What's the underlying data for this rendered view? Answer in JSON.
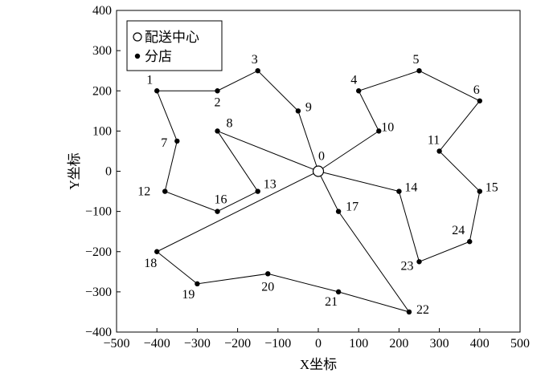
{
  "chart_data": {
    "type": "scatter",
    "xlabel": "X坐标",
    "ylabel": "Y坐标",
    "xlim": [
      -500,
      500
    ],
    "ylim": [
      -400,
      400
    ],
    "xticks": [
      -500,
      -400,
      -300,
      -200,
      -100,
      0,
      100,
      200,
      300,
      400,
      500
    ],
    "yticks": [
      -400,
      -300,
      -200,
      -100,
      0,
      100,
      200,
      300,
      400
    ],
    "grid": false,
    "legend_position": "top-left",
    "legend": [
      {
        "label": "配送中心",
        "marker": "open-circle"
      },
      {
        "label": "分店",
        "marker": "filled-dot"
      }
    ],
    "points": [
      {
        "id": "0",
        "x": 0,
        "y": 0,
        "kind": "depot"
      },
      {
        "id": "1",
        "x": -400,
        "y": 200
      },
      {
        "id": "2",
        "x": -250,
        "y": 200
      },
      {
        "id": "3",
        "x": -150,
        "y": 250
      },
      {
        "id": "4",
        "x": 100,
        "y": 200
      },
      {
        "id": "5",
        "x": 250,
        "y": 250
      },
      {
        "id": "6",
        "x": 400,
        "y": 175
      },
      {
        "id": "7",
        "x": -350,
        "y": 75
      },
      {
        "id": "8",
        "x": -250,
        "y": 100
      },
      {
        "id": "9",
        "x": -50,
        "y": 150
      },
      {
        "id": "10",
        "x": 150,
        "y": 100
      },
      {
        "id": "11",
        "x": 300,
        "y": 50
      },
      {
        "id": "12",
        "x": -380,
        "y": -50
      },
      {
        "id": "13",
        "x": -150,
        "y": -50
      },
      {
        "id": "14",
        "x": 200,
        "y": -50
      },
      {
        "id": "15",
        "x": 400,
        "y": -50
      },
      {
        "id": "16",
        "x": -250,
        "y": -100
      },
      {
        "id": "17",
        "x": 50,
        "y": -100
      },
      {
        "id": "18",
        "x": -400,
        "y": -200
      },
      {
        "id": "19",
        "x": -300,
        "y": -280
      },
      {
        "id": "20",
        "x": -125,
        "y": -255
      },
      {
        "id": "21",
        "x": 50,
        "y": -300
      },
      {
        "id": "22",
        "x": 225,
        "y": -350
      },
      {
        "id": "23",
        "x": 250,
        "y": -225
      },
      {
        "id": "24",
        "x": 375,
        "y": -175
      }
    ],
    "routes": [
      [
        "0",
        "9",
        "3",
        "2",
        "1",
        "7",
        "12",
        "16",
        "13",
        "8",
        "0"
      ],
      [
        "0",
        "10",
        "4",
        "5",
        "6",
        "11",
        "15",
        "24",
        "23",
        "14",
        "0"
      ],
      [
        "0",
        "17",
        "22",
        "21",
        "20",
        "19",
        "18",
        "0"
      ]
    ]
  }
}
